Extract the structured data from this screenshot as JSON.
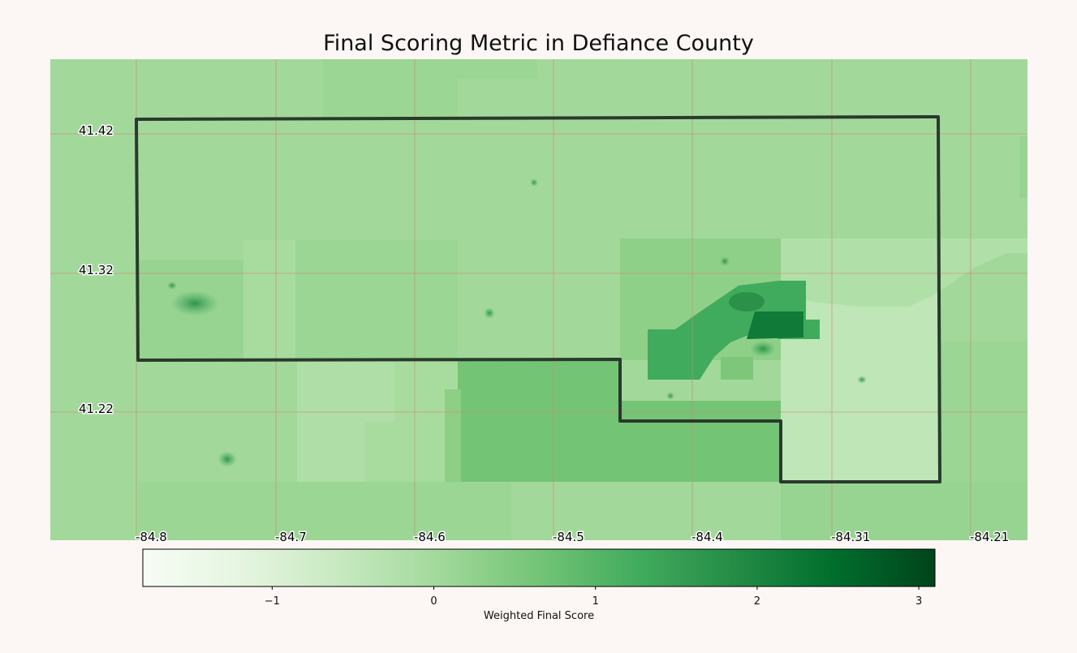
{
  "title": "Final Scoring Metric in Defiance County",
  "map": {
    "latitude_labels": [
      "41.42",
      "41.32",
      "41.22"
    ],
    "longitude_labels": [
      "-84.8",
      "-84.7",
      "-84.6",
      "-84.5",
      "-84.4",
      "-84.31",
      "-84.21"
    ],
    "gridline_color": "#d08770",
    "boundary_color": "#2a3a2c"
  },
  "colorbar": {
    "label": "Weighted Final Score",
    "min": -1.8,
    "max": 3.1,
    "ticks": [
      -1,
      0,
      1,
      2,
      3
    ],
    "tick_labels": [
      "−1",
      "0",
      "1",
      "2",
      "3"
    ],
    "colormap": "Greens",
    "colors": [
      "#f7fcf5",
      "#e5f5e0",
      "#c7e9c0",
      "#a1d99b",
      "#74c476",
      "#41ab5d",
      "#238b45",
      "#006d2c",
      "#00441b"
    ]
  }
}
